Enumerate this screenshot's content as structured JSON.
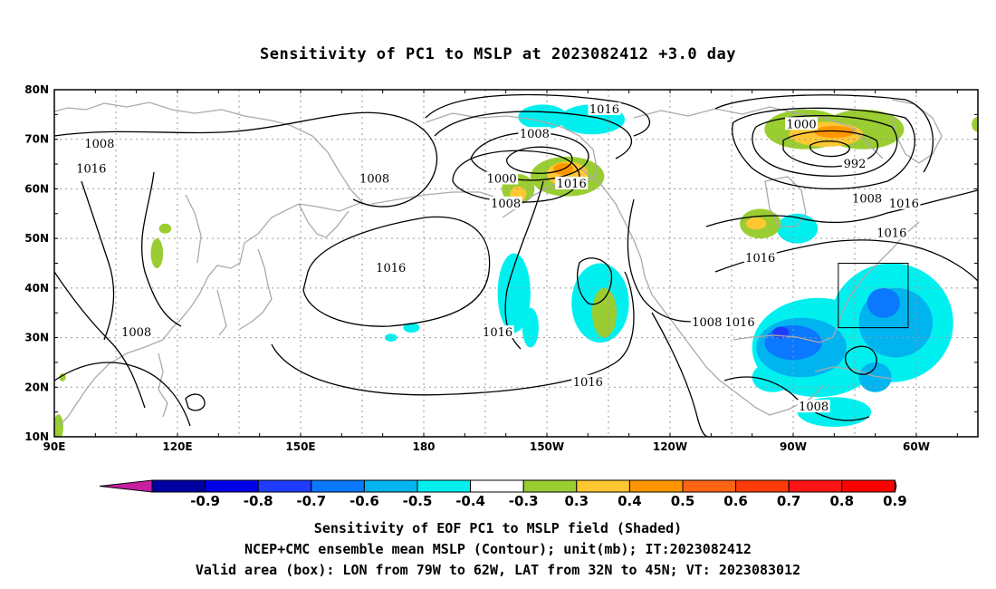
{
  "title": "Sensitivity of PC1 to MSLP at 2023082412 +3.0 day",
  "lat_labels": [
    "80N",
    "70N",
    "60N",
    "50N",
    "40N",
    "30N",
    "20N",
    "10N"
  ],
  "lon_labels": [
    "90E",
    "120E",
    "150E",
    "180",
    "150W",
    "120W",
    "90W",
    "60W"
  ],
  "contour_labels": [
    {
      "text": "1016",
      "lon": -136,
      "lat": 76
    },
    {
      "text": "1008",
      "lon": -153,
      "lat": 71
    },
    {
      "text": "1008",
      "lon": 101,
      "lat": 69
    },
    {
      "text": "1016",
      "lon": 99,
      "lat": 64
    },
    {
      "text": "1008",
      "lon": 168,
      "lat": 62
    },
    {
      "text": "1000",
      "lon": -161,
      "lat": 62
    },
    {
      "text": "1008",
      "lon": -160,
      "lat": 57
    },
    {
      "text": "1016",
      "lon": -144,
      "lat": 61
    },
    {
      "text": "1000",
      "lon": -88,
      "lat": 73
    },
    {
      "text": "992",
      "lon": -75,
      "lat": 65
    },
    {
      "text": "1008",
      "lon": -72,
      "lat": 58
    },
    {
      "text": "1016",
      "lon": -63,
      "lat": 57
    },
    {
      "text": "1016",
      "lon": -66,
      "lat": 51
    },
    {
      "text": "1016",
      "lon": -98,
      "lat": 46
    },
    {
      "text": "1016",
      "lon": 172,
      "lat": 44
    },
    {
      "text": "1008",
      "lon": -111,
      "lat": 33
    },
    {
      "text": "1016",
      "lon": -103,
      "lat": 33
    },
    {
      "text": "1008",
      "lon": 110,
      "lat": 31
    },
    {
      "text": "1016",
      "lon": -162,
      "lat": 31
    },
    {
      "text": "1016",
      "lon": -140,
      "lat": 21
    },
    {
      "text": "1008",
      "lon": -85,
      "lat": 16
    }
  ],
  "shading": {
    "cold": [
      {
        "lon": -151,
        "lat": 74.5,
        "rx": 6,
        "ry": 2.5,
        "level": -0.4
      },
      {
        "lon": -139,
        "lat": 74,
        "rx": 8,
        "ry": 3,
        "level": -0.4
      },
      {
        "lon": -89,
        "lat": 52,
        "rx": 5,
        "ry": 3,
        "level": -0.4
      },
      {
        "lon": -158,
        "lat": 39,
        "rx": 4,
        "ry": 8,
        "level": -0.4
      },
      {
        "lon": -154,
        "lat": 32,
        "rx": 2,
        "ry": 4,
        "level": -0.4
      },
      {
        "lon": -137,
        "lat": 37,
        "rx": 7,
        "ry": 8,
        "level": -0.4
      },
      {
        "lon": 177,
        "lat": 32,
        "rx": 2,
        "ry": 1,
        "level": -0.4
      },
      {
        "lon": 172,
        "lat": 30,
        "rx": 1.5,
        "ry": 0.8,
        "level": -0.4
      },
      {
        "lon": -84,
        "lat": 28,
        "rx": 16,
        "ry": 10,
        "level": -0.4
      },
      {
        "lon": -66,
        "lat": 33,
        "rx": 15,
        "ry": 12,
        "level": -0.4
      },
      {
        "lon": -95,
        "lat": 22,
        "rx": 5,
        "ry": 3,
        "level": -0.4
      },
      {
        "lon": -80,
        "lat": 15,
        "rx": 9,
        "ry": 3,
        "level": -0.4
      },
      {
        "lon": -88,
        "lat": 28,
        "rx": 11,
        "ry": 6,
        "level": -0.5
      },
      {
        "lon": -65,
        "lat": 33,
        "rx": 9,
        "ry": 7,
        "level": -0.5
      },
      {
        "lon": -70,
        "lat": 22,
        "rx": 4,
        "ry": 3,
        "level": -0.5
      },
      {
        "lon": -90,
        "lat": 29,
        "rx": 7,
        "ry": 3.5,
        "level": -0.6
      },
      {
        "lon": -68,
        "lat": 37,
        "rx": 4,
        "ry": 3,
        "level": -0.6
      },
      {
        "lon": -93,
        "lat": 31,
        "rx": 2,
        "ry": 1.2,
        "level": -0.7
      }
    ],
    "warm": [
      {
        "lon": -145,
        "lat": 62.5,
        "rx": 9,
        "ry": 4,
        "level": 0.3
      },
      {
        "lon": -157,
        "lat": 60,
        "rx": 4,
        "ry": 3,
        "level": 0.3
      },
      {
        "lon": -87,
        "lat": 72,
        "rx": 10,
        "ry": 4,
        "level": 0.3
      },
      {
        "lon": -73,
        "lat": 72,
        "rx": 10,
        "ry": 4,
        "level": 0.3
      },
      {
        "lon": -98,
        "lat": 53,
        "rx": 5,
        "ry": 3,
        "level": 0.3
      },
      {
        "lon": -136,
        "lat": 35,
        "rx": 3,
        "ry": 5,
        "level": 0.3
      },
      {
        "lon": 115,
        "lat": 47,
        "rx": 1.5,
        "ry": 3,
        "level": 0.3
      },
      {
        "lon": 117,
        "lat": 52,
        "rx": 1.5,
        "ry": 1,
        "level": 0.3
      },
      {
        "lon": 91,
        "lat": 12,
        "rx": 1.2,
        "ry": 2.5,
        "level": 0.3
      },
      {
        "lon": 92,
        "lat": 22,
        "rx": 0.8,
        "ry": 0.8,
        "level": 0.3
      },
      {
        "lon": -45,
        "lat": 73,
        "rx": 1.5,
        "ry": 1.5,
        "level": 0.3
      },
      {
        "lon": -145,
        "lat": 63,
        "rx": 5,
        "ry": 2.5,
        "level": 0.4
      },
      {
        "lon": -82,
        "lat": 71,
        "rx": 9,
        "ry": 2.5,
        "level": 0.4
      },
      {
        "lon": -99,
        "lat": 53,
        "rx": 2.5,
        "ry": 1.2,
        "level": 0.4
      },
      {
        "lon": -157,
        "lat": 59,
        "rx": 2,
        "ry": 1.5,
        "level": 0.4
      },
      {
        "lon": -146,
        "lat": 64,
        "rx": 2.5,
        "ry": 1.2,
        "level": 0.5
      },
      {
        "lon": -80,
        "lat": 71.5,
        "rx": 5,
        "ry": 1.2,
        "level": 0.5
      }
    ]
  },
  "valid_box": {
    "lon_min": -79,
    "lon_max": -62,
    "lat_min": 32,
    "lat_max": 45
  },
  "colorbar": {
    "labels": [
      "-0.9",
      "-0.8",
      "-0.7",
      "-0.6",
      "-0.5",
      "-0.4",
      "-0.3",
      "0.3",
      "0.4",
      "0.5",
      "0.6",
      "0.7",
      "0.8",
      "0.9"
    ],
    "low_tip_color": "#c81ea0",
    "high_tip_color": "#ff9ed2",
    "colors": [
      "#0000a0",
      "#0000e6",
      "#1e3cff",
      "#0a78ff",
      "#00b4f0",
      "#00f0f0",
      "#ffffff",
      "#9acd32",
      "#ffc832",
      "#ff9600",
      "#ff6414",
      "#ff3c0a",
      "#ff1414",
      "#ff0000"
    ]
  },
  "level_colors": {
    "-0.7": "#1e3cff",
    "-0.6": "#0a78ff",
    "-0.5": "#00b4f0",
    "-0.4": "#00f0f0",
    "0.3": "#9acd32",
    "0.4": "#ffc832",
    "0.5": "#ff9600"
  },
  "captions": {
    "line1": "Sensitivity of EOF PC1 to MSLP field (Shaded)",
    "line2": "NCEP+CMC ensemble mean MSLP (Contour); unit(mb); IT:2023082412",
    "line3": "Valid area (box): LON from 79W to 62W, LAT from 32N to 45N; VT: 2023083012"
  }
}
